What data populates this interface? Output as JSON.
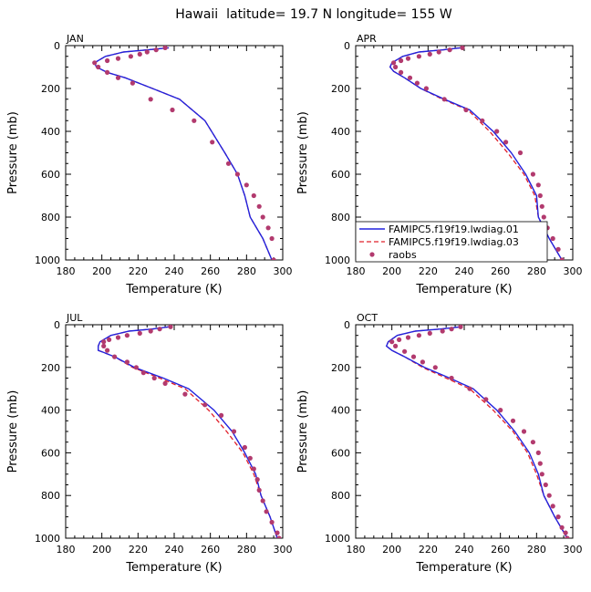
{
  "title": "Hawaii  latitude= 19.7 N longitude= 155 W",
  "colors": {
    "model01": "#2222dd",
    "model03": "#e0202a",
    "raobs": "#b23a6e",
    "axis": "#000000"
  },
  "legend": {
    "entries": [
      {
        "label": "FAMIPC5.f19f19.lwdiag.01",
        "style": "solid",
        "color": "#2222dd"
      },
      {
        "label": "FAMIPC5.f19f19.lwdiag.03",
        "style": "dashed",
        "color": "#e0202a"
      },
      {
        "label": "raobs",
        "style": "marker",
        "color": "#b23a6e"
      }
    ]
  },
  "chart_data": [
    {
      "type": "line",
      "month": "JAN",
      "xlabel": "Temperature (K)",
      "ylabel": "Pressure (mb)",
      "xlim": [
        180,
        300
      ],
      "ylim": [
        0,
        1000
      ],
      "y_inverted": true,
      "xticks": [
        "180",
        "200",
        "220",
        "240",
        "260",
        "280",
        "300"
      ],
      "yticks": [
        "0",
        "200",
        "400",
        "600",
        "800",
        "1000"
      ],
      "series": [
        {
          "name": "FAMIPC5.f19f19.lwdiag.01",
          "x": [
            237,
            225,
            212,
            202,
            196,
            197,
            203,
            213,
            228,
            243,
            257,
            268,
            275,
            279,
            282,
            289,
            294
          ],
          "y": [
            10,
            20,
            30,
            50,
            80,
            100,
            125,
            150,
            200,
            250,
            350,
            500,
            600,
            700,
            800,
            900,
            1000
          ]
        },
        {
          "name": "FAMIPC5.f19f19.lwdiag.03",
          "x": [
            237,
            225,
            212,
            202,
            196,
            197,
            203,
            213,
            228,
            243,
            257,
            268,
            275,
            279,
            282,
            289,
            294
          ],
          "y": [
            10,
            20,
            30,
            50,
            80,
            100,
            125,
            150,
            200,
            250,
            350,
            500,
            600,
            700,
            800,
            900,
            1000
          ]
        },
        {
          "name": "raobs",
          "x": [
            235,
            230,
            225,
            221,
            216,
            209,
            203,
            196,
            198,
            203,
            209,
            217,
            227,
            239,
            251,
            261,
            270,
            275,
            280,
            284,
            287,
            289,
            292,
            294,
            295
          ],
          "y": [
            10,
            20,
            30,
            40,
            50,
            60,
            70,
            80,
            100,
            125,
            150,
            175,
            250,
            300,
            350,
            450,
            550,
            600,
            650,
            700,
            750,
            800,
            850,
            900,
            1000
          ]
        }
      ]
    },
    {
      "type": "line",
      "month": "APR",
      "xlabel": "Temperature (K)",
      "ylabel": "Pressure (mb)",
      "xlim": [
        180,
        300
      ],
      "ylim": [
        0,
        1000
      ],
      "y_inverted": true,
      "xticks": [
        "180",
        "200",
        "220",
        "240",
        "260",
        "280",
        "300"
      ],
      "yticks": [
        "0",
        "200",
        "400",
        "600",
        "800",
        "1000"
      ],
      "series": [
        {
          "name": "FAMIPC5.f19f19.lwdiag.01",
          "x": [
            238,
            228,
            215,
            206,
            200,
            199,
            201,
            207,
            216,
            229,
            243,
            256,
            266,
            274,
            280,
            281,
            287,
            294
          ],
          "y": [
            10,
            20,
            30,
            50,
            80,
            100,
            120,
            150,
            200,
            250,
            300,
            400,
            500,
            600,
            700,
            800,
            900,
            1000
          ]
        },
        {
          "name": "FAMIPC5.f19f19.lwdiag.03",
          "x": [
            238,
            228,
            215,
            206,
            200,
            199,
            201,
            207,
            216,
            228,
            242,
            254,
            264,
            273,
            279,
            281,
            287,
            294
          ],
          "y": [
            10,
            20,
            30,
            50,
            80,
            100,
            120,
            150,
            200,
            250,
            300,
            400,
            500,
            600,
            700,
            800,
            900,
            1000
          ]
        },
        {
          "name": "raobs",
          "x": [
            239,
            232,
            226,
            221,
            215,
            209,
            205,
            201,
            202,
            205,
            210,
            214,
            219,
            229,
            241,
            250,
            258,
            263,
            271,
            278,
            281,
            282,
            283,
            284,
            286,
            289,
            292,
            294
          ],
          "y": [
            10,
            20,
            30,
            40,
            50,
            60,
            70,
            80,
            100,
            125,
            150,
            175,
            200,
            250,
            300,
            350,
            400,
            450,
            500,
            600,
            650,
            700,
            750,
            800,
            850,
            900,
            950,
            1000
          ]
        }
      ]
    },
    {
      "type": "line",
      "month": "JUL",
      "xlabel": "Temperature (K)",
      "ylabel": "Pressure (mb)",
      "xlim": [
        180,
        300
      ],
      "ylim": [
        0,
        1000
      ],
      "y_inverted": true,
      "xticks": [
        "180",
        "200",
        "220",
        "240",
        "260",
        "280",
        "300"
      ],
      "yticks": [
        "0",
        "200",
        "400",
        "600",
        "800",
        "1000"
      ],
      "series": [
        {
          "name": "FAMIPC5.f19f19.lwdiag.01",
          "x": [
            237,
            228,
            215,
            205,
            199,
            198,
            198,
            201,
            207,
            218,
            234,
            248,
            262,
            272,
            279,
            285,
            288,
            293,
            297
          ],
          "y": [
            10,
            20,
            30,
            50,
            80,
            100,
            120,
            130,
            150,
            200,
            250,
            300,
            400,
            500,
            600,
            700,
            800,
            900,
            1000
          ]
        },
        {
          "name": "FAMIPC5.f19f19.lwdiag.03",
          "x": [
            237,
            228,
            215,
            205,
            199,
            198,
            198,
            201,
            207,
            217,
            232,
            246,
            259,
            269,
            278,
            284,
            288,
            293,
            297
          ],
          "y": [
            10,
            20,
            30,
            50,
            80,
            100,
            120,
            130,
            150,
            200,
            250,
            300,
            400,
            500,
            600,
            700,
            800,
            900,
            1000
          ]
        },
        {
          "name": "raobs",
          "x": [
            238,
            232,
            227,
            221,
            214,
            209,
            204,
            201,
            201,
            203,
            207,
            214,
            219,
            223,
            229,
            235,
            246,
            257,
            266,
            273,
            279,
            282,
            284,
            286,
            287,
            289,
            291,
            294,
            297,
            298
          ],
          "y": [
            10,
            20,
            30,
            40,
            50,
            60,
            70,
            80,
            100,
            120,
            150,
            175,
            200,
            225,
            250,
            275,
            325,
            375,
            425,
            500,
            575,
            625,
            675,
            725,
            775,
            825,
            875,
            925,
            975,
            1000
          ]
        }
      ]
    },
    {
      "type": "line",
      "month": "OCT",
      "xlabel": "Temperature (K)",
      "ylabel": "Pressure (mb)",
      "xlim": [
        180,
        300
      ],
      "ylim": [
        0,
        1000
      ],
      "y_inverted": true,
      "xticks": [
        "180",
        "200",
        "220",
        "240",
        "260",
        "280",
        "300"
      ],
      "yticks": [
        "0",
        "200",
        "400",
        "600",
        "800",
        "1000"
      ],
      "series": [
        {
          "name": "FAMIPC5.f19f19.lwdiag.01",
          "x": [
            238,
            227,
            213,
            203,
            198,
            197,
            200,
            207,
            218,
            232,
            245,
            258,
            268,
            276,
            281,
            284,
            290,
            297
          ],
          "y": [
            10,
            20,
            30,
            50,
            80,
            100,
            120,
            150,
            200,
            250,
            300,
            400,
            500,
            600,
            700,
            800,
            900,
            1000
          ]
        },
        {
          "name": "FAMIPC5.f19f19.lwdiag.03",
          "x": [
            238,
            227,
            213,
            203,
            198,
            197,
            200,
            207,
            217,
            230,
            243,
            256,
            267,
            275,
            280,
            284,
            290,
            297
          ],
          "y": [
            10,
            20,
            30,
            50,
            80,
            100,
            120,
            150,
            200,
            250,
            300,
            400,
            500,
            600,
            700,
            800,
            900,
            1000
          ]
        },
        {
          "name": "raobs",
          "x": [
            238,
            233,
            228,
            221,
            215,
            209,
            204,
            200,
            202,
            207,
            212,
            217,
            224,
            233,
            243,
            252,
            260,
            267,
            273,
            278,
            281,
            282,
            283,
            285,
            287,
            289,
            292,
            294,
            296,
            297
          ],
          "y": [
            10,
            20,
            30,
            40,
            50,
            60,
            70,
            80,
            100,
            125,
            150,
            175,
            200,
            250,
            300,
            350,
            400,
            450,
            500,
            550,
            600,
            650,
            700,
            750,
            800,
            850,
            900,
            950,
            975,
            1000
          ]
        }
      ]
    }
  ]
}
